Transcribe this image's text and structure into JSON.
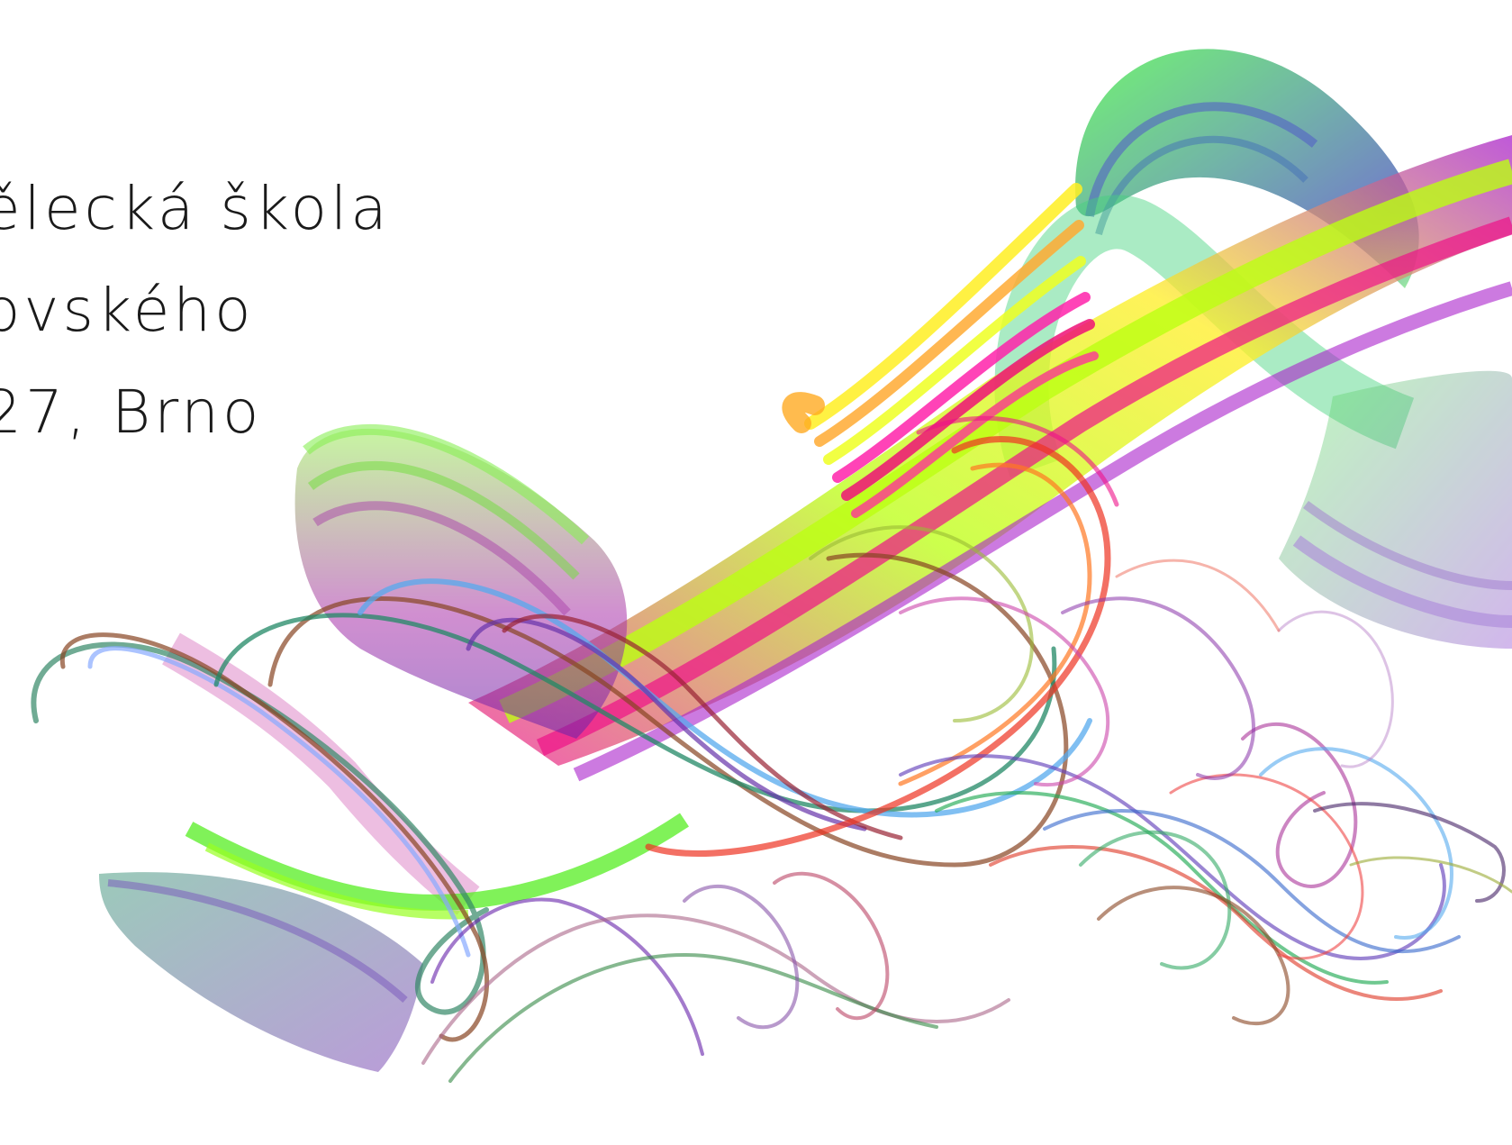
{
  "text_lines": [
    "ělecká škola",
    "ovského",
    "27, Brno"
  ],
  "palette": {
    "green": "#33dd22",
    "lime": "#aaff00",
    "yellow": "#eeee22",
    "orange": "#ffaa22",
    "magenta": "#ee1188",
    "purple": "#9933aa",
    "teal": "#228877",
    "blue": "#3366cc",
    "red": "#dd3322",
    "sky": "#55aaee"
  }
}
